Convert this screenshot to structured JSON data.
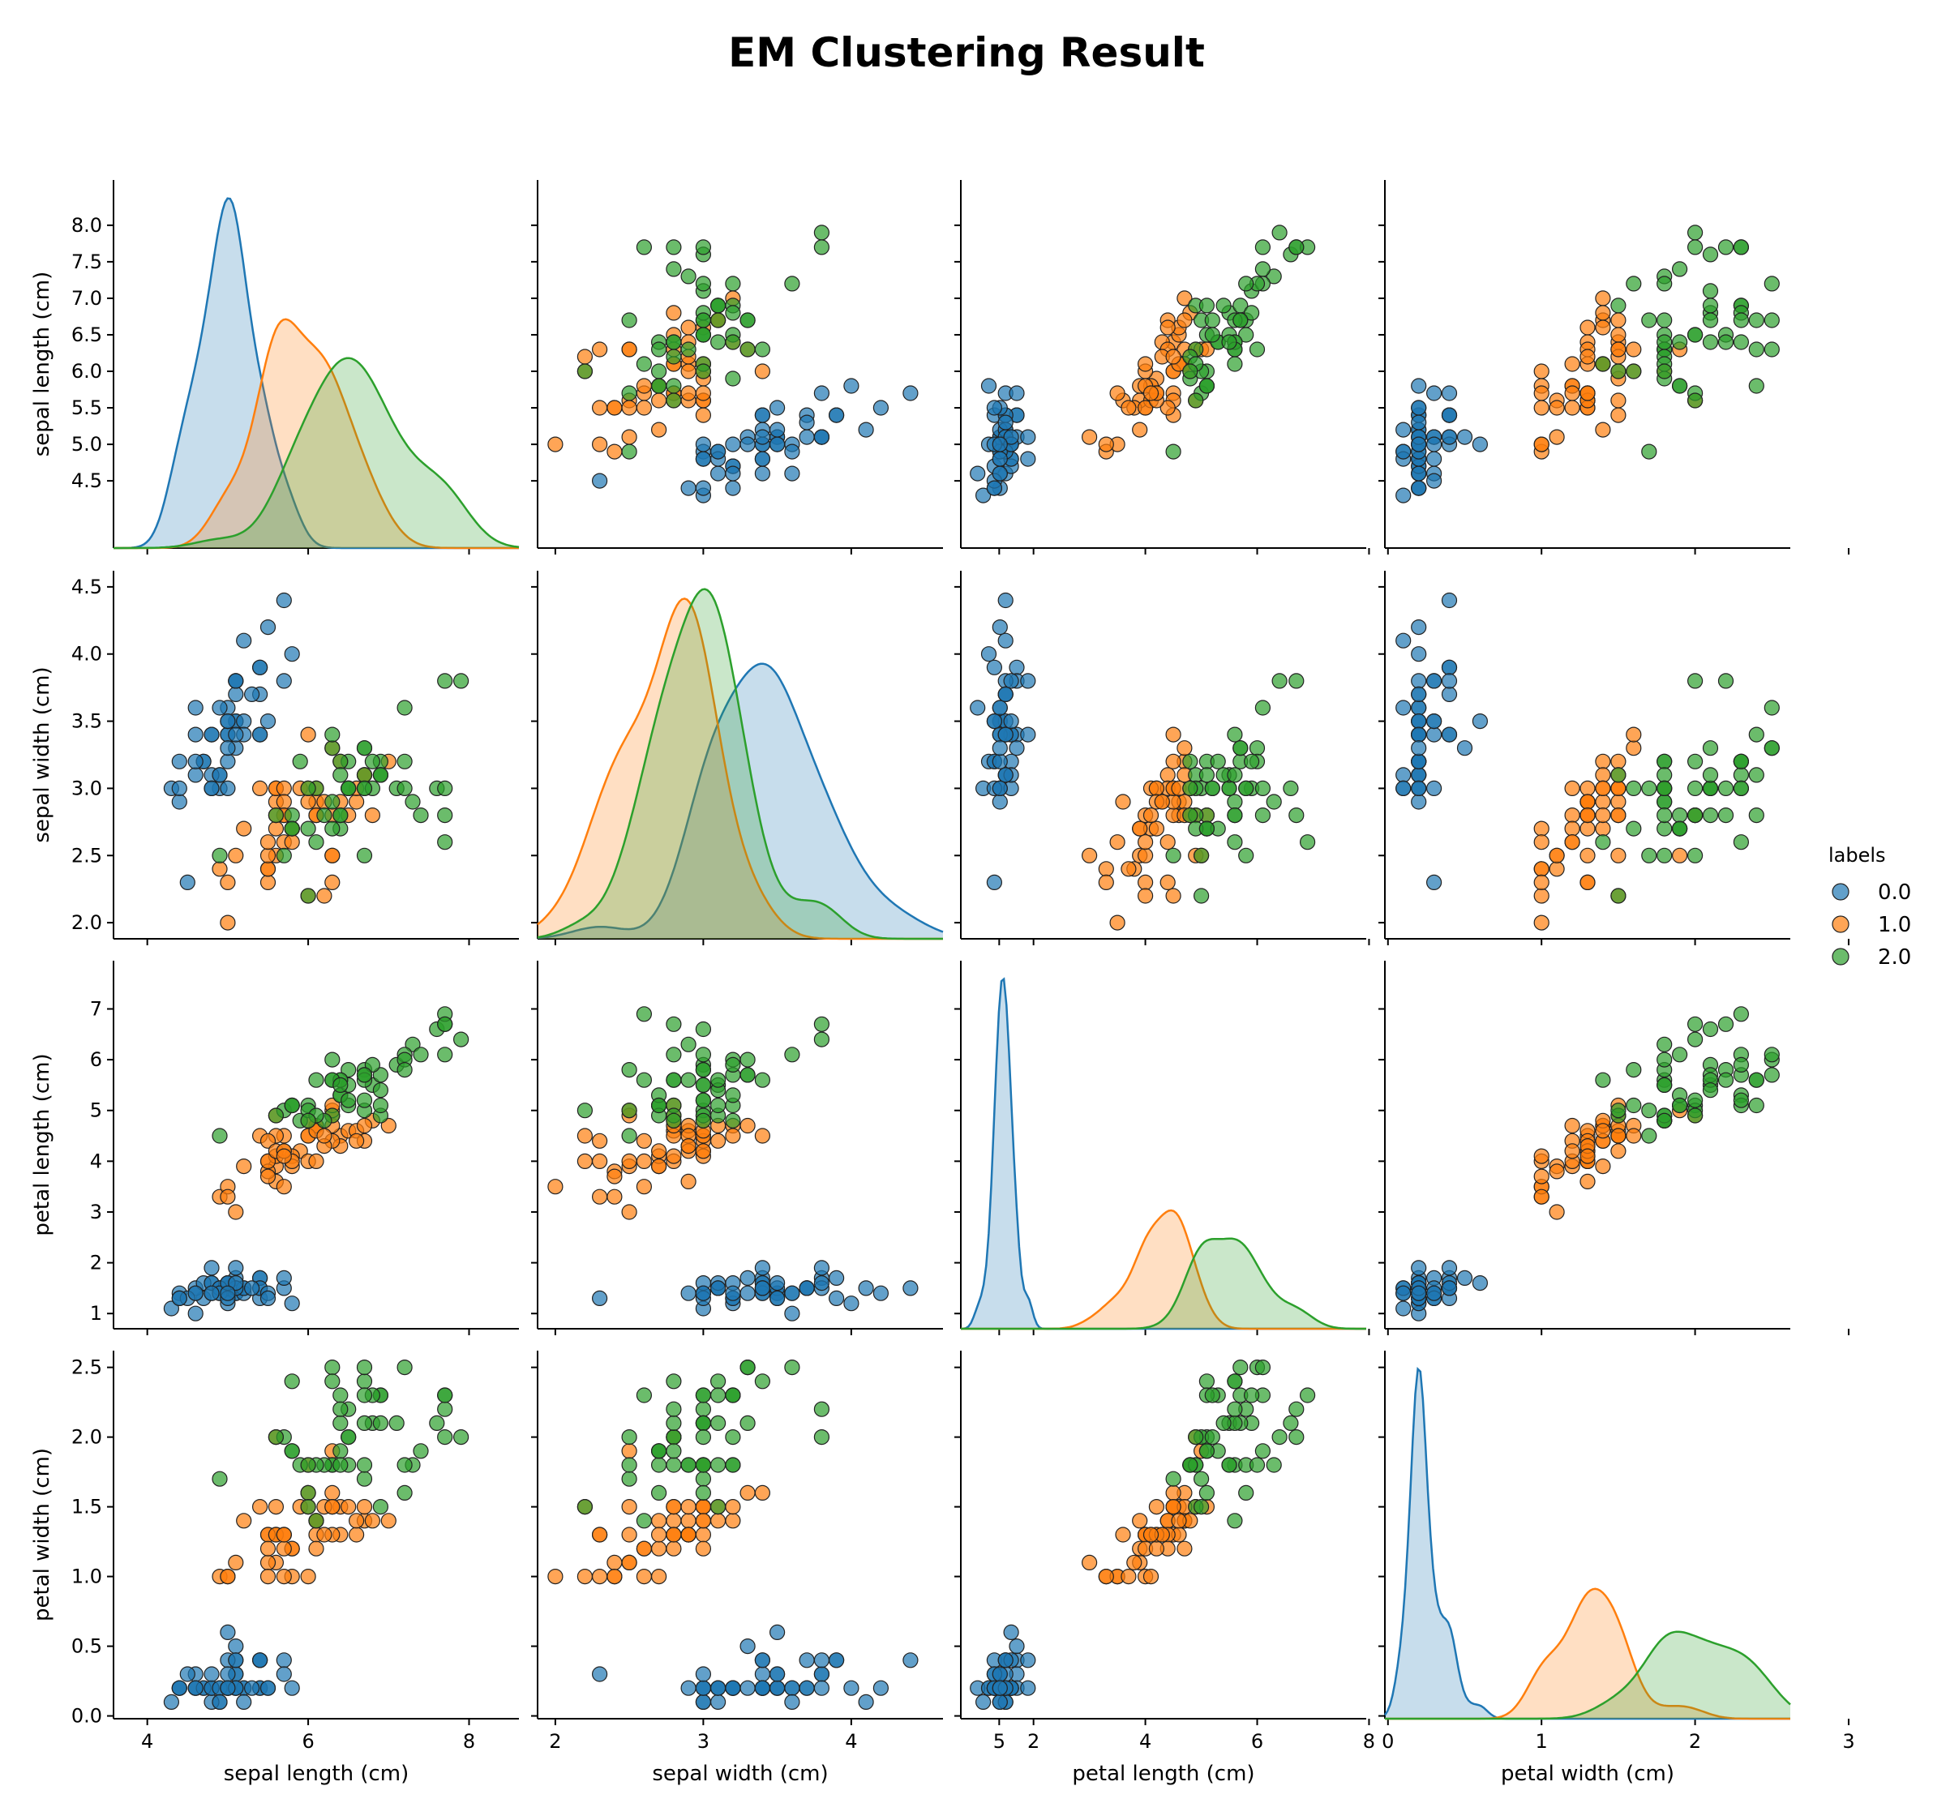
{
  "chart_data": {
    "type": "scatter",
    "kind": "pairplot",
    "title": "EM Clustering Result",
    "variables": [
      "sepal length (cm)",
      "sepal width (cm)",
      "petal length (cm)",
      "petal width (cm)"
    ],
    "axis_ranges": {
      "sepal length (cm)": [
        3.58,
        8.62
      ],
      "sepal width (cm)": [
        1.88,
        4.62
      ],
      "petal length (cm)": [
        0.7,
        7.95
      ],
      "petal width (cm)": [
        -0.02,
        2.62
      ]
    },
    "ticks": {
      "sepal length (cm)": {
        "left": [
          "4.5",
          "5.0",
          "5.5",
          "6.0",
          "6.5",
          "7.0",
          "7.5",
          "8.0"
        ],
        "bottom": [
          "4",
          "6",
          "8"
        ]
      },
      "sepal width (cm)": {
        "left": [
          "2.0",
          "2.5",
          "3.0",
          "3.5",
          "4.0",
          "4.5"
        ],
        "bottom": [
          "2",
          "3",
          "4",
          "5"
        ]
      },
      "petal length (cm)": {
        "left": [
          "1",
          "2",
          "3",
          "4",
          "5",
          "6",
          "7"
        ],
        "bottom": [
          "2",
          "4",
          "6",
          "8"
        ]
      },
      "petal width (cm)": {
        "left": [
          "0.0",
          "0.5",
          "1.0",
          "1.5",
          "2.0",
          "2.5"
        ],
        "bottom": [
          "0",
          "1",
          "2",
          "3"
        ]
      }
    },
    "diagonal": "kde",
    "grid": false,
    "legend": {
      "title": "labels",
      "position": "right"
    },
    "series": [
      {
        "name": "0.0",
        "color": "#1f77b4",
        "points": [
          [
            5.1,
            3.5,
            1.4,
            0.2
          ],
          [
            4.9,
            3.0,
            1.4,
            0.2
          ],
          [
            4.7,
            3.2,
            1.3,
            0.2
          ],
          [
            4.6,
            3.1,
            1.5,
            0.2
          ],
          [
            5.0,
            3.6,
            1.4,
            0.2
          ],
          [
            5.4,
            3.9,
            1.7,
            0.4
          ],
          [
            4.6,
            3.4,
            1.4,
            0.3
          ],
          [
            5.0,
            3.4,
            1.5,
            0.2
          ],
          [
            4.4,
            2.9,
            1.4,
            0.2
          ],
          [
            4.9,
            3.1,
            1.5,
            0.1
          ],
          [
            5.4,
            3.7,
            1.5,
            0.2
          ],
          [
            4.8,
            3.4,
            1.6,
            0.2
          ],
          [
            4.8,
            3.0,
            1.4,
            0.1
          ],
          [
            4.3,
            3.0,
            1.1,
            0.1
          ],
          [
            5.8,
            4.0,
            1.2,
            0.2
          ],
          [
            5.7,
            4.4,
            1.5,
            0.4
          ],
          [
            5.4,
            3.9,
            1.3,
            0.4
          ],
          [
            5.1,
            3.5,
            1.4,
            0.3
          ],
          [
            5.7,
            3.8,
            1.7,
            0.3
          ],
          [
            5.1,
            3.8,
            1.5,
            0.3
          ],
          [
            5.4,
            3.4,
            1.7,
            0.2
          ],
          [
            5.1,
            3.7,
            1.5,
            0.4
          ],
          [
            4.6,
            3.6,
            1.0,
            0.2
          ],
          [
            5.1,
            3.3,
            1.7,
            0.5
          ],
          [
            4.8,
            3.4,
            1.9,
            0.2
          ],
          [
            5.0,
            3.0,
            1.6,
            0.2
          ],
          [
            5.0,
            3.4,
            1.6,
            0.4
          ],
          [
            5.2,
            3.5,
            1.5,
            0.2
          ],
          [
            5.2,
            3.4,
            1.4,
            0.2
          ],
          [
            4.7,
            3.2,
            1.6,
            0.2
          ],
          [
            4.8,
            3.1,
            1.6,
            0.2
          ],
          [
            5.4,
            3.4,
            1.5,
            0.4
          ],
          [
            5.2,
            4.1,
            1.5,
            0.1
          ],
          [
            5.5,
            4.2,
            1.4,
            0.2
          ],
          [
            4.9,
            3.1,
            1.5,
            0.2
          ],
          [
            5.0,
            3.2,
            1.2,
            0.2
          ],
          [
            5.5,
            3.5,
            1.3,
            0.2
          ],
          [
            4.9,
            3.6,
            1.4,
            0.1
          ],
          [
            4.4,
            3.0,
            1.3,
            0.2
          ],
          [
            5.1,
            3.4,
            1.5,
            0.2
          ],
          [
            5.0,
            3.5,
            1.3,
            0.3
          ],
          [
            4.5,
            2.3,
            1.3,
            0.3
          ],
          [
            4.4,
            3.2,
            1.3,
            0.2
          ],
          [
            5.0,
            3.5,
            1.6,
            0.6
          ],
          [
            5.1,
            3.8,
            1.9,
            0.4
          ],
          [
            4.8,
            3.0,
            1.4,
            0.3
          ],
          [
            5.1,
            3.8,
            1.6,
            0.2
          ],
          [
            4.6,
            3.2,
            1.4,
            0.2
          ],
          [
            5.3,
            3.7,
            1.5,
            0.2
          ],
          [
            5.0,
            3.3,
            1.4,
            0.2
          ]
        ]
      },
      {
        "name": "1.0",
        "color": "#ff7f0e",
        "points": [
          [
            7.0,
            3.2,
            4.7,
            1.4
          ],
          [
            6.4,
            3.2,
            4.5,
            1.5
          ],
          [
            5.5,
            2.3,
            4.0,
            1.3
          ],
          [
            6.5,
            2.8,
            4.6,
            1.5
          ],
          [
            5.7,
            2.8,
            4.5,
            1.3
          ],
          [
            6.3,
            3.3,
            4.7,
            1.6
          ],
          [
            4.9,
            2.4,
            3.3,
            1.0
          ],
          [
            6.6,
            2.9,
            4.6,
            1.3
          ],
          [
            5.2,
            2.7,
            3.9,
            1.4
          ],
          [
            5.0,
            2.0,
            3.5,
            1.0
          ],
          [
            5.9,
            3.0,
            4.2,
            1.5
          ],
          [
            6.0,
            2.2,
            4.0,
            1.0
          ],
          [
            6.1,
            2.9,
            4.7,
            1.4
          ],
          [
            5.6,
            2.9,
            3.6,
            1.3
          ],
          [
            6.7,
            3.1,
            4.4,
            1.4
          ],
          [
            5.6,
            3.0,
            4.5,
            1.5
          ],
          [
            5.8,
            2.7,
            4.1,
            1.0
          ],
          [
            5.6,
            2.5,
            3.9,
            1.1
          ],
          [
            6.1,
            2.8,
            4.0,
            1.3
          ],
          [
            6.3,
            2.5,
            4.9,
            1.5
          ],
          [
            6.1,
            2.8,
            4.7,
            1.2
          ],
          [
            6.4,
            2.9,
            4.3,
            1.3
          ],
          [
            6.6,
            3.0,
            4.4,
            1.4
          ],
          [
            6.8,
            2.8,
            4.8,
            1.4
          ],
          [
            6.0,
            2.9,
            4.5,
            1.5
          ],
          [
            5.7,
            2.6,
            3.5,
            1.0
          ],
          [
            5.5,
            2.4,
            3.8,
            1.1
          ],
          [
            5.5,
            2.4,
            3.7,
            1.0
          ],
          [
            5.8,
            2.7,
            3.9,
            1.2
          ],
          [
            5.4,
            3.0,
            4.5,
            1.5
          ],
          [
            6.0,
            3.4,
            4.5,
            1.6
          ],
          [
            6.7,
            3.1,
            4.7,
            1.5
          ],
          [
            6.3,
            2.3,
            4.4,
            1.3
          ],
          [
            5.6,
            3.0,
            4.1,
            1.3
          ],
          [
            5.5,
            2.5,
            4.0,
            1.3
          ],
          [
            5.5,
            2.6,
            4.4,
            1.2
          ],
          [
            6.1,
            3.0,
            4.6,
            1.4
          ],
          [
            5.8,
            2.6,
            4.0,
            1.2
          ],
          [
            5.0,
            2.3,
            3.3,
            1.0
          ],
          [
            5.6,
            2.7,
            4.2,
            1.3
          ],
          [
            5.7,
            3.0,
            4.2,
            1.2
          ],
          [
            5.7,
            2.9,
            4.2,
            1.3
          ],
          [
            6.2,
            2.9,
            4.3,
            1.3
          ],
          [
            5.1,
            2.5,
            3.0,
            1.1
          ],
          [
            5.7,
            2.8,
            4.1,
            1.3
          ],
          [
            6.2,
            2.2,
            4.5,
            1.5
          ],
          [
            5.6,
            2.8,
            4.9,
            2.0
          ],
          [
            6.3,
            2.5,
            5.0,
            1.9
          ],
          [
            6.0,
            3.0,
            4.8,
            1.8
          ],
          [
            6.3,
            2.8,
            5.1,
            1.5
          ]
        ]
      },
      {
        "name": "2.0",
        "color": "#2ca02c",
        "points": [
          [
            6.9,
            3.1,
            4.9,
            1.5
          ],
          [
            5.9,
            3.2,
            4.8,
            1.8
          ],
          [
            6.7,
            3.0,
            5.0,
            1.7
          ],
          [
            6.0,
            2.7,
            5.1,
            1.6
          ],
          [
            6.3,
            3.3,
            6.0,
            2.5
          ],
          [
            5.8,
            2.7,
            5.1,
            1.9
          ],
          [
            7.1,
            3.0,
            5.9,
            2.1
          ],
          [
            6.3,
            2.9,
            5.6,
            1.8
          ],
          [
            6.5,
            3.0,
            5.8,
            2.2
          ],
          [
            7.6,
            3.0,
            6.6,
            2.1
          ],
          [
            4.9,
            2.5,
            4.5,
            1.7
          ],
          [
            7.3,
            2.9,
            6.3,
            1.8
          ],
          [
            6.7,
            2.5,
            5.8,
            1.8
          ],
          [
            7.2,
            3.6,
            6.1,
            2.5
          ],
          [
            6.5,
            3.2,
            5.1,
            2.0
          ],
          [
            6.4,
            2.7,
            5.3,
            1.9
          ],
          [
            6.8,
            3.0,
            5.5,
            2.1
          ],
          [
            5.7,
            2.5,
            5.0,
            2.0
          ],
          [
            5.8,
            2.8,
            5.1,
            2.4
          ],
          [
            6.4,
            3.2,
            5.3,
            2.3
          ],
          [
            6.5,
            3.0,
            5.5,
            1.8
          ],
          [
            7.7,
            3.8,
            6.7,
            2.2
          ],
          [
            7.7,
            2.6,
            6.9,
            2.3
          ],
          [
            6.0,
            2.2,
            5.0,
            1.5
          ],
          [
            6.9,
            3.2,
            5.7,
            2.3
          ],
          [
            5.6,
            2.8,
            4.9,
            2.0
          ],
          [
            7.7,
            2.8,
            6.7,
            2.0
          ],
          [
            6.3,
            2.7,
            4.9,
            1.8
          ],
          [
            6.7,
            3.3,
            5.7,
            2.1
          ],
          [
            7.2,
            3.2,
            6.0,
            1.8
          ],
          [
            6.2,
            2.8,
            4.8,
            1.8
          ],
          [
            6.1,
            3.0,
            4.9,
            1.8
          ],
          [
            6.4,
            2.8,
            5.6,
            2.1
          ],
          [
            7.2,
            3.0,
            5.8,
            1.6
          ],
          [
            7.4,
            2.8,
            6.1,
            1.9
          ],
          [
            7.9,
            3.8,
            6.4,
            2.0
          ],
          [
            6.4,
            2.8,
            5.6,
            2.2
          ],
          [
            6.1,
            2.6,
            5.6,
            1.4
          ],
          [
            7.7,
            3.0,
            6.1,
            2.3
          ],
          [
            6.3,
            3.4,
            5.6,
            2.4
          ],
          [
            6.4,
            3.1,
            5.5,
            1.8
          ],
          [
            6.0,
            3.0,
            4.8,
            1.8
          ],
          [
            6.9,
            3.1,
            5.4,
            2.1
          ],
          [
            6.7,
            3.1,
            5.6,
            2.4
          ],
          [
            6.9,
            3.1,
            5.1,
            2.3
          ],
          [
            5.8,
            2.7,
            5.1,
            1.9
          ],
          [
            6.8,
            3.2,
            5.9,
            2.3
          ],
          [
            6.7,
            3.3,
            5.7,
            2.5
          ],
          [
            6.7,
            3.0,
            5.2,
            2.3
          ],
          [
            6.5,
            3.0,
            5.2,
            2.0
          ]
        ]
      }
    ]
  }
}
